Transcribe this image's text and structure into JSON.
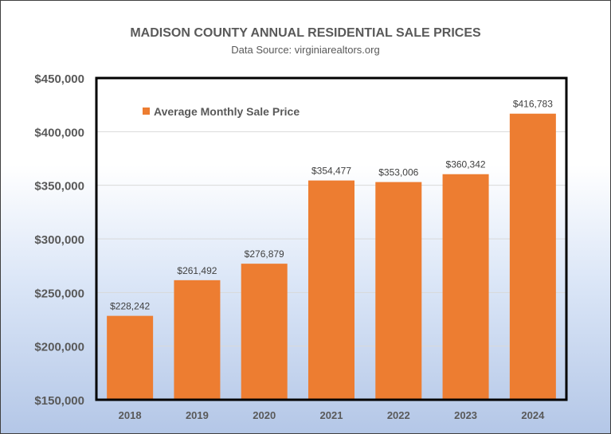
{
  "chart_data": {
    "type": "bar",
    "title": "MADISON COUNTY ANNUAL RESIDENTIAL SALE PRICES",
    "subtitle": "Data Source:  virginiarealtors.org",
    "categories": [
      "2018",
      "2019",
      "2020",
      "2021",
      "2022",
      "2023",
      "2024"
    ],
    "series": [
      {
        "name": "Average Monthly Sale Price",
        "values": [
          228242,
          261492,
          276879,
          354477,
          353006,
          360342,
          416783
        ],
        "color": "#ED7D31"
      }
    ],
    "data_labels": [
      "$228,242",
      "$261,492",
      "$276,879",
      "$354,477",
      "$353,006",
      "$360,342",
      "$416,783"
    ],
    "yticks": [
      150000,
      200000,
      250000,
      300000,
      350000,
      400000,
      450000
    ],
    "ytick_labels": [
      "$150,000",
      "$200,000",
      "$250,000",
      "$300,000",
      "$350,000",
      "$400,000",
      "$450,000"
    ],
    "ylim": [
      150000,
      450000
    ],
    "xlabel": "",
    "ylabel": "",
    "grid": true,
    "legend": "top-left"
  }
}
